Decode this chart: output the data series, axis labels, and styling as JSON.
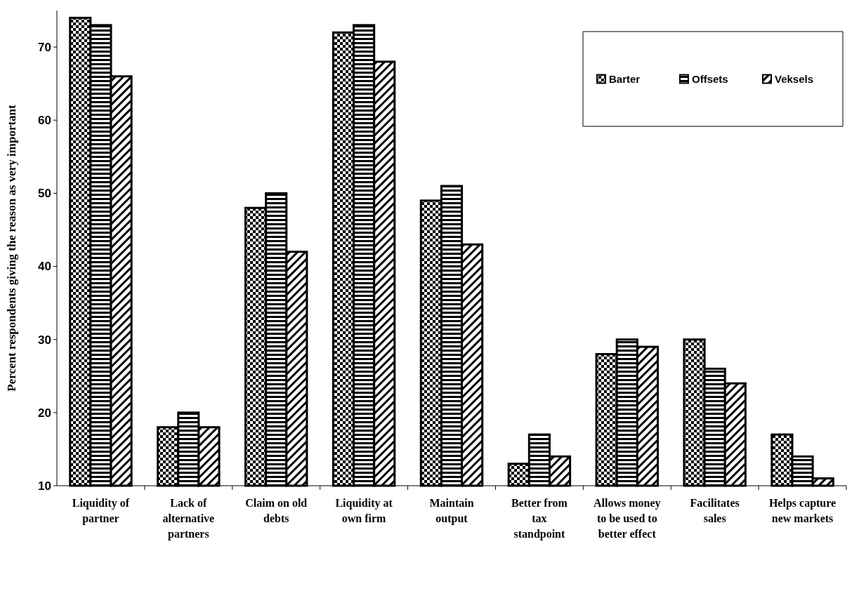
{
  "chart_data": {
    "type": "bar",
    "ylabel": "Percent respondents giving the reason as very important",
    "categories": [
      "Liquidity of partner",
      "Lack of alternative partners",
      "Claim on old debts",
      "Liquidity at own firm",
      "Maintain output",
      "Better from tax standpoint",
      "Allows money to be used to better effect",
      "Facilitates sales",
      "Helps capture new markets"
    ],
    "series": [
      {
        "name": "Barter",
        "color": "#000000",
        "values": [
          74,
          18,
          48,
          72,
          49,
          13,
          28,
          30,
          17
        ]
      },
      {
        "name": "Offsets",
        "color": "#000000",
        "values": [
          73,
          20,
          50,
          73,
          51,
          17,
          30,
          26,
          14
        ]
      },
      {
        "name": "Veksels",
        "color": "#000000",
        "values": [
          66,
          18,
          42,
          68,
          43,
          14,
          29,
          24,
          11
        ]
      }
    ],
    "ylim": [
      10,
      75
    ],
    "yticks": [
      10,
      20,
      30,
      40,
      50,
      60,
      70
    ],
    "grid": false,
    "legend": "top right"
  }
}
